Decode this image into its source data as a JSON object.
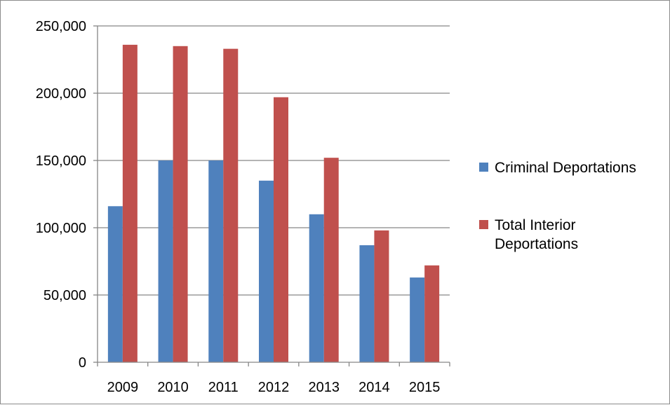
{
  "chart_data": {
    "type": "bar",
    "title": "",
    "xlabel": "",
    "ylabel": "",
    "categories": [
      "2009",
      "2010",
      "2011",
      "2012",
      "2013",
      "2014",
      "2015"
    ],
    "series": [
      {
        "name": "Criminal Deportations",
        "color": "#4f81bd",
        "values": [
          116000,
          150000,
          150000,
          135000,
          110000,
          87000,
          63000
        ]
      },
      {
        "name": "Total Interior Deportations",
        "color": "#c0504d",
        "values": [
          236000,
          235000,
          233000,
          197000,
          152000,
          98000,
          72000
        ]
      }
    ],
    "ylim": [
      0,
      250000
    ],
    "y_ticks": [
      0,
      50000,
      100000,
      150000,
      200000,
      250000
    ],
    "y_tick_labels": [
      "0",
      "50,000",
      "100,000",
      "150,000",
      "200,000",
      "250,000"
    ],
    "grid": true,
    "legend_position": "right",
    "legend_lines": [
      [
        "Criminal Deportations"
      ],
      [
        "Total Interior",
        "Deportations"
      ]
    ]
  }
}
